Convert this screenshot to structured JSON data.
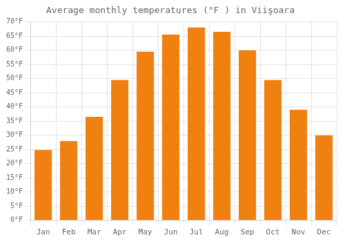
{
  "chart_data": {
    "type": "bar",
    "title": "Average monthly temperatures (°F ) in Viişoara",
    "categories": [
      "Jan",
      "Feb",
      "Mar",
      "Apr",
      "May",
      "Jun",
      "Jul",
      "Aug",
      "Sep",
      "Oct",
      "Nov",
      "Dec"
    ],
    "values": [
      24.8,
      28.0,
      36.5,
      49.5,
      59.5,
      65.5,
      68.0,
      66.5,
      60.0,
      49.5,
      39.0,
      30.0
    ],
    "color": "#F08010",
    "ylim": [
      0,
      70
    ],
    "yticks": [
      {
        "value": 0,
        "label": "0°F"
      },
      {
        "value": 5,
        "label": "5°F"
      },
      {
        "value": 10,
        "label": "10°F"
      },
      {
        "value": 15,
        "label": "15°F"
      },
      {
        "value": 20,
        "label": "20°F"
      },
      {
        "value": 25,
        "label": "25°F"
      },
      {
        "value": 30,
        "label": "30°F"
      },
      {
        "value": 35,
        "label": "35°F"
      },
      {
        "value": 40,
        "label": "40°F"
      },
      {
        "value": 45,
        "label": "45°F"
      },
      {
        "value": 50,
        "label": "50°F"
      },
      {
        "value": 55,
        "label": "55°F"
      },
      {
        "value": 60,
        "label": "60°F"
      },
      {
        "value": 65,
        "label": "65°F"
      },
      {
        "value": 70,
        "label": "70°F"
      }
    ],
    "grid": true
  }
}
